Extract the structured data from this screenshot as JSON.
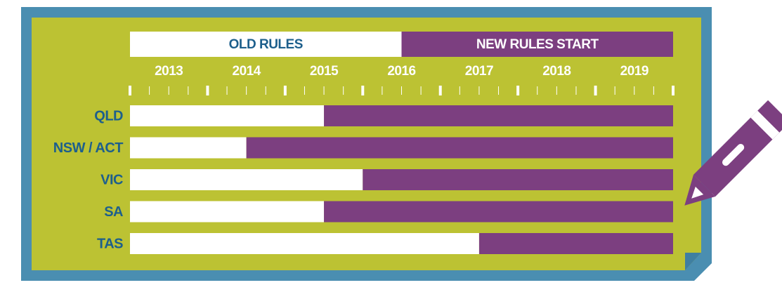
{
  "chart_data": {
    "type": "timeline",
    "header_split": 2016.5,
    "series": [
      {
        "name": "OLD RULES",
        "color": "#ffffff"
      },
      {
        "name": "NEW RULES START",
        "color": "#7c3f80"
      }
    ],
    "years": [
      "2013",
      "2014",
      "2015",
      "2016",
      "2017",
      "2018",
      "2019"
    ],
    "xlim": [
      2013,
      2020
    ],
    "xticks": [
      2013,
      2014,
      2015,
      2016,
      2017,
      2018,
      2019,
      2020
    ],
    "categories": [
      "QLD",
      "NSW / ACT",
      "VIC",
      "SA",
      "TAS"
    ],
    "values": [
      2015.5,
      2014.5,
      2016,
      2015.5,
      2017.5
    ]
  }
}
